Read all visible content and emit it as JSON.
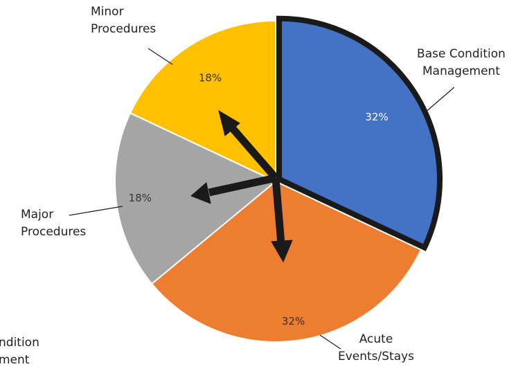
{
  "chart_data": {
    "type": "pie",
    "categories": [
      "Base Condition\nManagement",
      "Acute\nEvents/Stays",
      "Major\nProcedures",
      "Minor\nProcedures"
    ],
    "values": [
      32,
      32,
      18,
      18
    ],
    "value_labels": [
      "32%",
      "32%",
      "18%",
      "18%"
    ],
    "colors": [
      "#4472c4",
      "#ed7d31",
      "#a5a5a5",
      "#ffc000"
    ],
    "label_colors": [
      "#ffffff",
      "#333333",
      "#333333",
      "#333333"
    ],
    "exploded": [
      true,
      false,
      false,
      false
    ],
    "annotations": [
      "ndition\nment"
    ]
  }
}
